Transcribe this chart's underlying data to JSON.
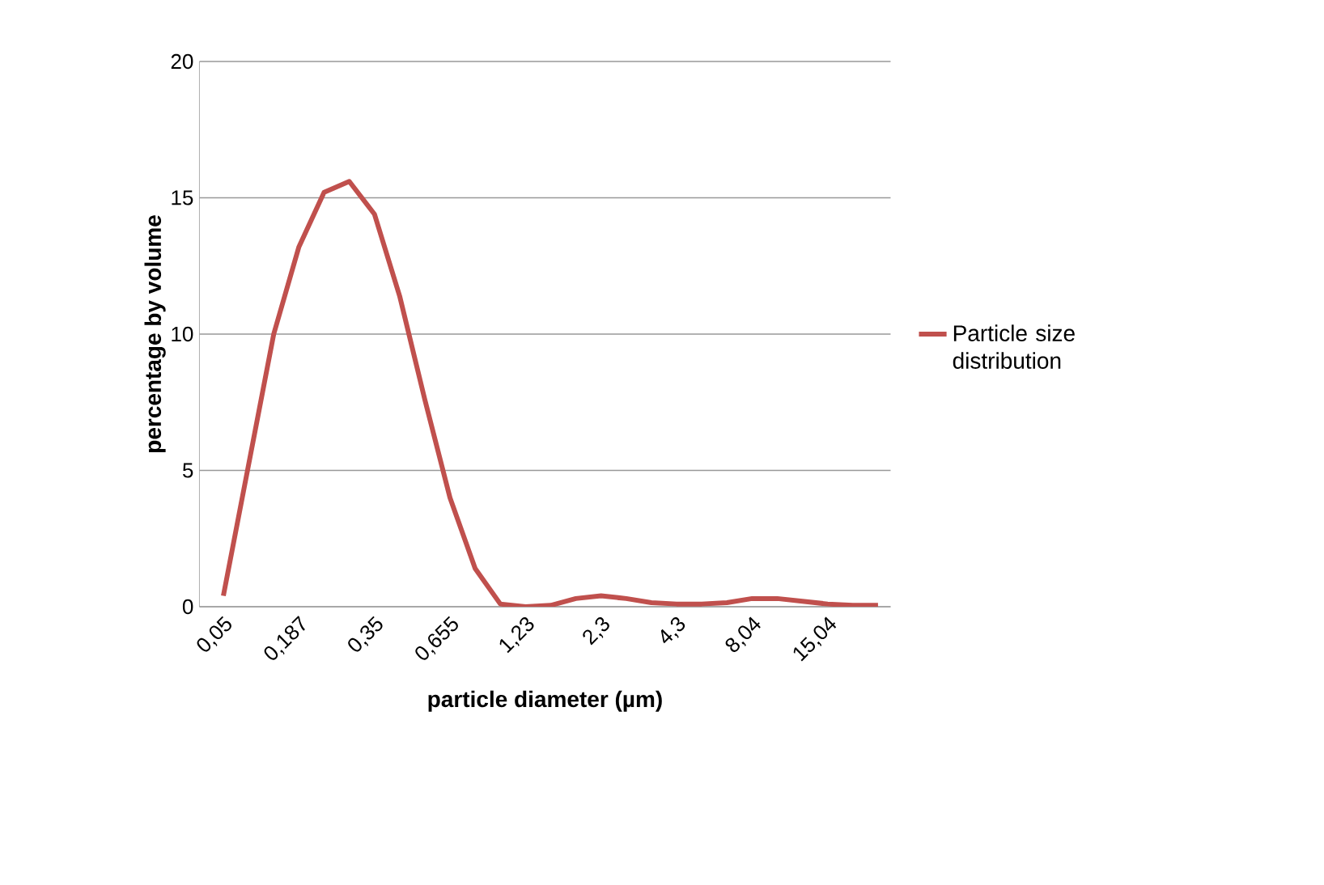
{
  "chart_data": {
    "type": "line",
    "xlabel": "particle diameter (µm)",
    "ylabel": "percentage by volume",
    "categories": [
      "0,05",
      null,
      null,
      "0,187",
      null,
      null,
      "0,35",
      null,
      null,
      "0,655",
      null,
      null,
      "1,23",
      null,
      null,
      "2,3",
      null,
      null,
      "4,3",
      null,
      null,
      "8,04",
      null,
      null,
      "15,04",
      null,
      null
    ],
    "series": [
      {
        "name": "Particle size distribution",
        "color": "#c0504d",
        "values": [
          0.4,
          5.2,
          10.0,
          13.2,
          15.2,
          15.6,
          14.4,
          11.4,
          7.6,
          4.0,
          1.4,
          0.1,
          0.0,
          0.05,
          0.3,
          0.4,
          0.3,
          0.15,
          0.1,
          0.1,
          0.15,
          0.3,
          0.3,
          0.2,
          0.1,
          0.05,
          0.05
        ]
      }
    ],
    "ylim": [
      0,
      20
    ],
    "yticks": [
      0,
      5,
      10,
      15,
      20
    ],
    "grid": "y",
    "legend": "right",
    "marker": "none",
    "line_style": "solid"
  }
}
